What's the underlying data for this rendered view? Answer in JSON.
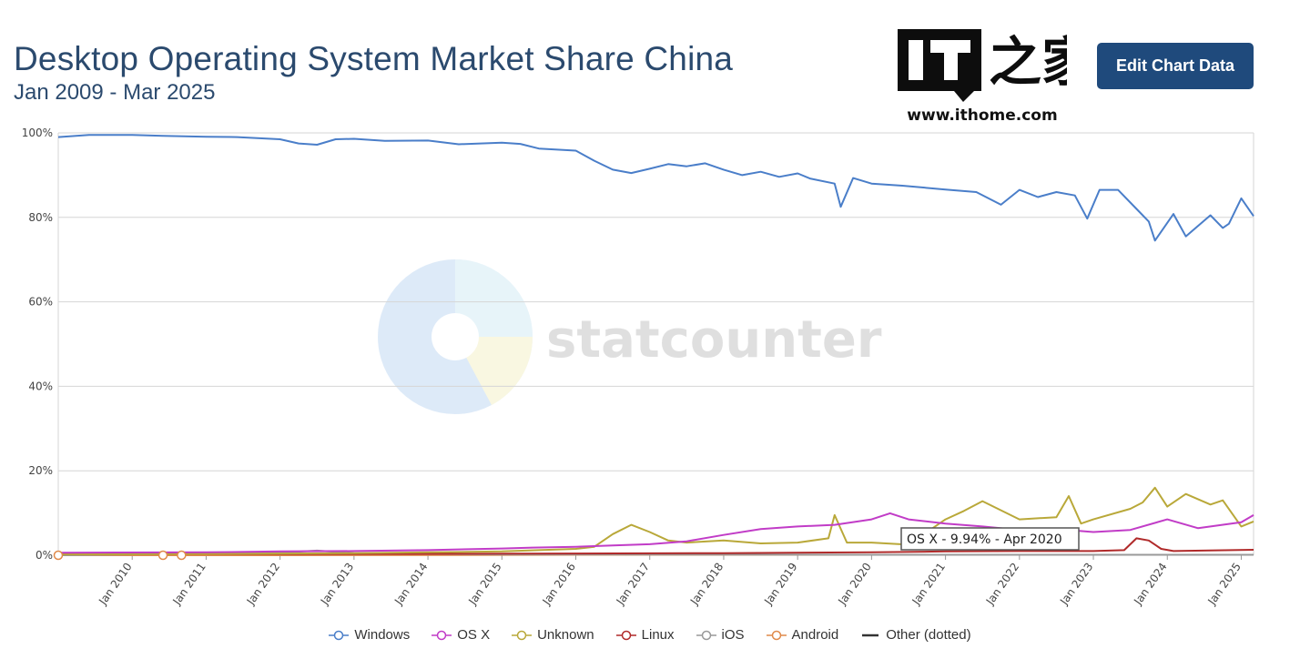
{
  "header": {
    "title": "Desktop Operating System Market Share China",
    "subtitle": "Jan 2009 - Mar 2025",
    "edit_button": "Edit Chart Data"
  },
  "logo": {
    "text": "IT之家",
    "url": "www.ithome.com"
  },
  "watermark": "statcounter",
  "tooltip": "OS X - 9.94% - Apr 2020",
  "colors": {
    "windows": "#4a7ec9",
    "osx": "#c13cc7",
    "unknown": "#b9a839",
    "linux": "#b02a2a",
    "ios": "#999999",
    "android": "#e08a4a",
    "other": "#333333",
    "button": "#1f4a7c",
    "title": "#2b4a6e"
  },
  "chart_data": {
    "type": "line",
    "ylim": [
      0,
      100
    ],
    "y_ticks": [
      "0%",
      "20%",
      "40%",
      "60%",
      "80%",
      "100%"
    ],
    "x_ticks": [
      "Jan 2010",
      "Jan 2011",
      "Jan 2012",
      "Jan 2013",
      "Jan 2014",
      "Jan 2015",
      "Jan 2016",
      "Jan 2017",
      "Jan 2018",
      "Jan 2019",
      "Jan 2020",
      "Jan 2021",
      "Jan 2022",
      "Jan 2023",
      "Jan 2024",
      "Jan 2025"
    ],
    "x_range": [
      "2009-01",
      "2025-03"
    ],
    "legend_position": "bottom",
    "series": [
      {
        "name": "Windows",
        "color": "#4a7ec9",
        "x": [
          "2009-01",
          "2009-06",
          "2010-01",
          "2010-06",
          "2011-01",
          "2011-06",
          "2012-01",
          "2012-04",
          "2012-07",
          "2012-10",
          "2013-01",
          "2013-06",
          "2014-01",
          "2014-06",
          "2015-01",
          "2015-04",
          "2015-07",
          "2016-01",
          "2016-04",
          "2016-07",
          "2016-10",
          "2017-01",
          "2017-04",
          "2017-07",
          "2017-10",
          "2018-01",
          "2018-04",
          "2018-07",
          "2018-10",
          "2019-01",
          "2019-03",
          "2019-07",
          "2019-08",
          "2019-10",
          "2020-01",
          "2020-06",
          "2021-01",
          "2021-06",
          "2021-10",
          "2022-01",
          "2022-04",
          "2022-07",
          "2022-10",
          "2022-12",
          "2023-02",
          "2023-05",
          "2023-08",
          "2023-10",
          "2023-11",
          "2024-02",
          "2024-04",
          "2024-08",
          "2024-10",
          "2024-11",
          "2025-01",
          "2025-03"
        ],
        "values": [
          99,
          99.5,
          99.5,
          99.3,
          99.1,
          99,
          98.5,
          97.5,
          97.2,
          98.5,
          98.6,
          98.1,
          98.2,
          97.3,
          97.7,
          97.4,
          96.3,
          95.8,
          93.4,
          91.3,
          90.5,
          91.5,
          92.6,
          92.1,
          92.8,
          91.3,
          90,
          90.8,
          89.6,
          90.4,
          89.2,
          88,
          82.5,
          89.3,
          88,
          87.5,
          86.6,
          86,
          83,
          86.5,
          84.8,
          86,
          85.2,
          79.7,
          86.5,
          86.5,
          82,
          79,
          74.5,
          80.8,
          75.5,
          80.5,
          77.5,
          78.5,
          84.5,
          80.3
        ]
      },
      {
        "name": "OS X",
        "color": "#c13cc7",
        "x": [
          "2009-01",
          "2011-01",
          "2012-01",
          "2013-01",
          "2014-01",
          "2015-01",
          "2015-06",
          "2016-01",
          "2016-07",
          "2017-01",
          "2017-07",
          "2018-01",
          "2018-07",
          "2019-01",
          "2019-07",
          "2020-01",
          "2020-04",
          "2020-07",
          "2021-01",
          "2021-07",
          "2022-01",
          "2022-07",
          "2023-01",
          "2023-07",
          "2024-01",
          "2024-06",
          "2025-01",
          "2025-03"
        ],
        "values": [
          0.6,
          0.7,
          0.9,
          1,
          1.2,
          1.6,
          1.8,
          2,
          2.3,
          2.6,
          3.3,
          4.8,
          6.2,
          6.8,
          7.2,
          8.5,
          9.94,
          8.5,
          7.5,
          6.8,
          6,
          6.2,
          5.5,
          6,
          8.5,
          6.4,
          7.8,
          9.5
        ]
      },
      {
        "name": "Unknown",
        "color": "#b9a839",
        "x": [
          "2009-01",
          "2012-01",
          "2013-01",
          "2014-01",
          "2015-01",
          "2015-07",
          "2016-01",
          "2016-04",
          "2016-07",
          "2016-10",
          "2017-01",
          "2017-04",
          "2017-07",
          "2018-01",
          "2018-07",
          "2019-01",
          "2019-06",
          "2019-07",
          "2019-09",
          "2020-01",
          "2020-07",
          "2021-01",
          "2021-04",
          "2021-07",
          "2022-01",
          "2022-07",
          "2022-09",
          "2022-11",
          "2023-01",
          "2023-07",
          "2023-09",
          "2023-11",
          "2024-01",
          "2024-04",
          "2024-08",
          "2024-10",
          "2025-01",
          "2025-03"
        ],
        "values": [
          0.2,
          0.4,
          0.5,
          0.7,
          0.9,
          1.2,
          1.5,
          2,
          5,
          7.2,
          5.5,
          3.5,
          3,
          3.5,
          2.8,
          3,
          4,
          9.5,
          3,
          3,
          2.5,
          8.5,
          10.5,
          12.8,
          8.5,
          9,
          14,
          7.5,
          8.5,
          11,
          12.5,
          16,
          11.5,
          14.5,
          12,
          13,
          6.8,
          8
        ]
      },
      {
        "name": "Linux",
        "color": "#b02a2a",
        "x": [
          "2009-01",
          "2013-01",
          "2016-01",
          "2018-01",
          "2020-01",
          "2021-01",
          "2022-01",
          "2023-01",
          "2023-06",
          "2023-08",
          "2023-10",
          "2023-12",
          "2024-02",
          "2025-03"
        ],
        "values": [
          0.3,
          0.3,
          0.4,
          0.5,
          0.7,
          0.9,
          1,
          1,
          1.2,
          4,
          3.5,
          1.5,
          1,
          1.3
        ]
      },
      {
        "name": "iOS",
        "color": "#999999",
        "x": [
          "2009-01",
          "2012-01",
          "2012-07",
          "2013-01",
          "2015-01",
          "2020-01",
          "2025-03"
        ],
        "values": [
          0,
          0.6,
          1.1,
          0.5,
          0.2,
          0.1,
          0.1
        ]
      },
      {
        "name": "Android",
        "color": "#e08a4a",
        "x": [
          "2009-01",
          "2010-06",
          "2012-01",
          "2016-01",
          "2020-01",
          "2025-03"
        ],
        "values": [
          0,
          0,
          0,
          0.1,
          0.1,
          0.1
        ]
      },
      {
        "name": "Other (dotted)",
        "color": "#333333",
        "dotted": true,
        "x": [
          "2009-01",
          "2025-03"
        ],
        "values": [
          0.1,
          0.1
        ]
      }
    ]
  }
}
